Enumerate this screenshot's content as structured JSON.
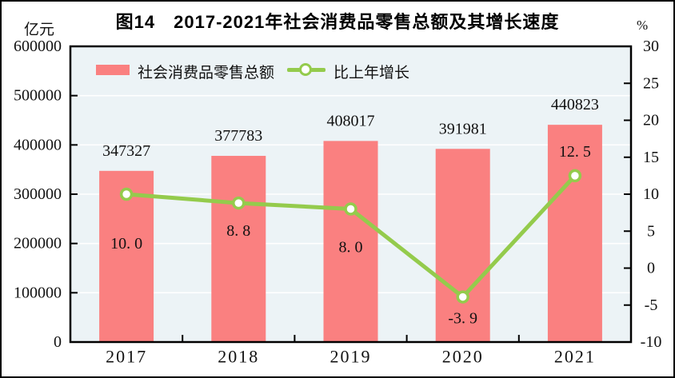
{
  "title": "图14　2017-2021年社会消费品零售总额及其增长速度",
  "colors": {
    "bar": "#FA8080",
    "line": "#94CB4C",
    "marker_fill": "#ffffff",
    "plot_background": "#ECF3F6",
    "grid": "#ffffff",
    "axis": "#000000",
    "text": "#111111"
  },
  "legend": {
    "bar_label": "社会消费品零售总额",
    "line_label": "比上年增长"
  },
  "chart_data": {
    "type": "bar+line combo",
    "title": "图14　2017-2021年社会消费品零售总额及其增长速度",
    "categories": [
      "2017",
      "2018",
      "2019",
      "2020",
      "2021"
    ],
    "series": [
      {
        "name": "社会消费品零售总额",
        "type": "bar",
        "axis": "left",
        "values": [
          347327,
          377783,
          408017,
          391981,
          440823
        ],
        "labels": [
          "347327",
          "377783",
          "408017",
          "391981",
          "440823"
        ],
        "color": "#FA8080"
      },
      {
        "name": "比上年增长",
        "type": "line",
        "axis": "right",
        "values": [
          10.0,
          8.8,
          8.0,
          -3.9,
          12.5
        ],
        "labels": [
          "10. 0",
          "8. 8",
          "8. 0",
          "-3. 9",
          "12. 5"
        ],
        "color": "#94CB4C",
        "marker": "circle-white"
      }
    ],
    "left_axis": {
      "unit": "亿元",
      "min": 0,
      "max": 600000,
      "step": 100000,
      "tick_labels": [
        "600000",
        "500000",
        "400000",
        "300000",
        "200000",
        "100000",
        "0"
      ]
    },
    "right_axis": {
      "unit": "%",
      "min": -10,
      "max": 30,
      "step": 5,
      "tick_labels": [
        "30",
        "25",
        "20",
        "15",
        "10",
        "5",
        "0",
        "-5",
        "-10"
      ]
    },
    "grid": true,
    "legend_position": "top-inside",
    "plot_bg": "#ECF3F6"
  }
}
